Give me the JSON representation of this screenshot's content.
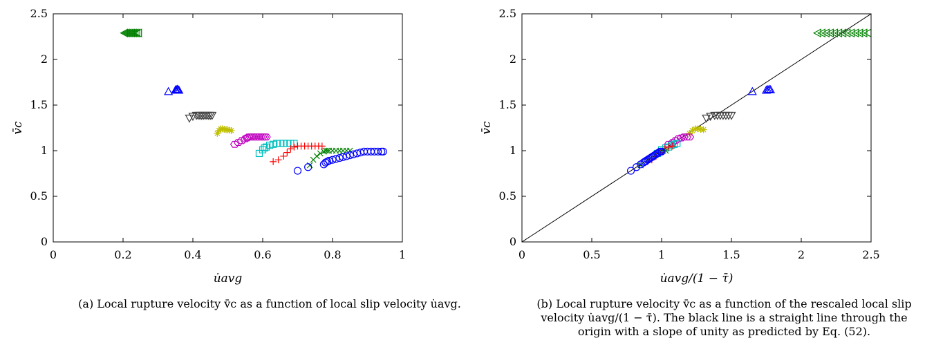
{
  "chart_data": [
    {
      "type": "scatter",
      "xlabel": "u̇avg",
      "ylabel": "v̄c",
      "xlim": [
        0,
        1
      ],
      "ylim": [
        0,
        2.5
      ],
      "xticks": [
        "0",
        "0.2",
        "0.4",
        "0.6",
        "0.8",
        "1"
      ],
      "yticks": [
        "0",
        "0.5",
        "1",
        "1.5",
        "2",
        "2.5"
      ],
      "xtick_values": [
        0,
        0.2,
        0.4,
        0.6,
        0.8,
        1
      ],
      "ytick_values": [
        0,
        0.5,
        1,
        1.5,
        2,
        2.5
      ],
      "caption": "(a) Local rupture velocity v̄c as a function of local slip velocity u̇avg.",
      "series": [
        {
          "color": "#008000",
          "marker": "triangle-left",
          "x": [
            0.205,
            0.21,
            0.215,
            0.22,
            0.225,
            0.23,
            0.235,
            0.24,
            0.245
          ],
          "y": [
            2.29,
            2.29,
            2.29,
            2.29,
            2.29,
            2.29,
            2.29,
            2.29,
            2.29
          ]
        },
        {
          "color": "#0000ff",
          "marker": "triangle-up",
          "x": [
            0.33,
            0.35,
            0.352,
            0.355,
            0.357,
            0.36
          ],
          "y": [
            1.645,
            1.66,
            1.665,
            1.67,
            1.665,
            1.66
          ]
        },
        {
          "color": "#3f3f3f",
          "marker": "triangle-down",
          "x": [
            0.39,
            0.4,
            0.41,
            0.415,
            0.42,
            0.425,
            0.43,
            0.435,
            0.44,
            0.445,
            0.45,
            0.455
          ],
          "y": [
            1.36,
            1.38,
            1.39,
            1.39,
            1.39,
            1.39,
            1.39,
            1.39,
            1.39,
            1.39,
            1.39,
            1.39
          ]
        },
        {
          "color": "#bfbf00",
          "marker": "star",
          "x": [
            0.47,
            0.475,
            0.48,
            0.485,
            0.49,
            0.495,
            0.5,
            0.505,
            0.51
          ],
          "y": [
            1.19,
            1.22,
            1.24,
            1.24,
            1.235,
            1.23,
            1.23,
            1.225,
            1.22
          ]
        },
        {
          "color": "#bf00bf",
          "marker": "hexagon",
          "x": [
            0.52,
            0.53,
            0.54,
            0.55,
            0.555,
            0.56,
            0.565,
            0.57,
            0.575,
            0.58,
            0.585,
            0.59,
            0.595,
            0.6,
            0.605,
            0.61
          ],
          "y": [
            1.07,
            1.09,
            1.11,
            1.13,
            1.14,
            1.15,
            1.15,
            1.15,
            1.15,
            1.15,
            1.15,
            1.15,
            1.15,
            1.15,
            1.15,
            1.15
          ]
        },
        {
          "color": "#00bfbf",
          "marker": "square",
          "x": [
            0.59,
            0.6,
            0.605,
            0.61,
            0.62,
            0.63,
            0.64,
            0.65,
            0.66,
            0.67,
            0.68,
            0.69
          ],
          "y": [
            0.97,
            1.01,
            1.03,
            1.04,
            1.06,
            1.07,
            1.08,
            1.08,
            1.08,
            1.08,
            1.08,
            1.08
          ]
        },
        {
          "color": "#ff0000",
          "marker": "plus",
          "x": [
            0.63,
            0.645,
            0.66,
            0.67,
            0.68,
            0.69,
            0.7,
            0.71,
            0.72,
            0.73,
            0.74,
            0.75,
            0.76,
            0.77
          ],
          "y": [
            0.88,
            0.9,
            0.94,
            0.98,
            1.02,
            1.04,
            1.05,
            1.05,
            1.05,
            1.05,
            1.05,
            1.05,
            1.05,
            1.05
          ]
        },
        {
          "color": "#008000",
          "marker": "x",
          "x": [
            0.735,
            0.745,
            0.755,
            0.765,
            0.775,
            0.78,
            0.785,
            0.79,
            0.8,
            0.81,
            0.82,
            0.83,
            0.84,
            0.85
          ],
          "y": [
            0.84,
            0.9,
            0.94,
            0.97,
            0.99,
            1.0,
            1.0,
            1.0,
            1.0,
            1.0,
            1.0,
            1.0,
            1.0,
            1.0
          ]
        },
        {
          "color": "#0000ff",
          "marker": "circle",
          "x": [
            0.7,
            0.73,
            0.775,
            0.78,
            0.785,
            0.79,
            0.8,
            0.81,
            0.82,
            0.83,
            0.84,
            0.85,
            0.86,
            0.87,
            0.88,
            0.89,
            0.9,
            0.91,
            0.92,
            0.93,
            0.94,
            0.945
          ],
          "y": [
            0.78,
            0.82,
            0.85,
            0.87,
            0.88,
            0.89,
            0.9,
            0.91,
            0.92,
            0.93,
            0.94,
            0.95,
            0.96,
            0.97,
            0.98,
            0.99,
            0.99,
            0.99,
            0.99,
            0.99,
            0.99,
            0.99
          ]
        }
      ]
    },
    {
      "type": "scatter",
      "xlabel": "u̇avg/(1 − τ̄)",
      "ylabel": "v̄c",
      "xlim": [
        0,
        2.5
      ],
      "ylim": [
        0,
        2.5
      ],
      "xticks": [
        "0",
        "0.5",
        "1",
        "1.5",
        "2",
        "2.5"
      ],
      "yticks": [
        "0",
        "0.5",
        "1",
        "1.5",
        "2",
        "2.5"
      ],
      "xtick_values": [
        0,
        0.5,
        1,
        1.5,
        2,
        2.5
      ],
      "ytick_values": [
        0,
        0.5,
        1,
        1.5,
        2,
        2.5
      ],
      "caption": "(b) Local rupture velocity v̄c as a function of the rescaled local slip velocity u̇avg/(1 − τ̄). The black line is a straight line through the origin with a slope of unity as predicted by Eq. (52).",
      "reference_line": {
        "x": [
          0,
          2.5
        ],
        "y": [
          0,
          2.5
        ],
        "color": "#000000"
      },
      "series": [
        {
          "color": "#008000",
          "marker": "triangle-left",
          "x": [
            2.12,
            2.15,
            2.18,
            2.21,
            2.24,
            2.27,
            2.3,
            2.33,
            2.36,
            2.39,
            2.42,
            2.45,
            2.48
          ],
          "y": [
            2.29,
            2.29,
            2.29,
            2.29,
            2.29,
            2.29,
            2.29,
            2.29,
            2.29,
            2.29,
            2.29,
            2.29,
            2.29
          ]
        },
        {
          "color": "#0000ff",
          "marker": "triangle-up",
          "x": [
            1.65,
            1.75,
            1.76,
            1.77,
            1.78
          ],
          "y": [
            1.645,
            1.66,
            1.665,
            1.67,
            1.665
          ]
        },
        {
          "color": "#3f3f3f",
          "marker": "triangle-down",
          "x": [
            1.32,
            1.35,
            1.38,
            1.4,
            1.42,
            1.44,
            1.46,
            1.48,
            1.5
          ],
          "y": [
            1.36,
            1.38,
            1.39,
            1.39,
            1.39,
            1.39,
            1.39,
            1.39,
            1.39
          ]
        },
        {
          "color": "#bfbf00",
          "marker": "star",
          "x": [
            1.2,
            1.22,
            1.24,
            1.26,
            1.28,
            1.3
          ],
          "y": [
            1.19,
            1.22,
            1.24,
            1.24,
            1.235,
            1.23
          ]
        },
        {
          "color": "#bf00bf",
          "marker": "hexagon",
          "x": [
            1.05,
            1.08,
            1.1,
            1.12,
            1.14,
            1.16,
            1.18,
            1.2
          ],
          "y": [
            1.07,
            1.09,
            1.11,
            1.13,
            1.14,
            1.15,
            1.15,
            1.15
          ]
        },
        {
          "color": "#00bfbf",
          "marker": "square",
          "x": [
            0.97,
            1.0,
            1.03,
            1.05,
            1.07,
            1.09,
            1.11
          ],
          "y": [
            0.97,
            1.01,
            1.03,
            1.04,
            1.06,
            1.07,
            1.08
          ]
        },
        {
          "color": "#ff0000",
          "marker": "plus",
          "x": [
            0.9,
            0.93,
            0.96,
            0.99,
            1.02,
            1.05,
            1.08
          ],
          "y": [
            0.88,
            0.9,
            0.94,
            0.98,
            1.02,
            1.04,
            1.05
          ]
        },
        {
          "color": "#008000",
          "marker": "x",
          "x": [
            0.85,
            0.9,
            0.94,
            0.97,
            0.99,
            1.01,
            1.03
          ],
          "y": [
            0.84,
            0.9,
            0.94,
            0.97,
            0.99,
            1.0,
            1.0
          ]
        },
        {
          "color": "#0000ff",
          "marker": "circle",
          "x": [
            0.78,
            0.82,
            0.85,
            0.87,
            0.88,
            0.89,
            0.9,
            0.91,
            0.92,
            0.93,
            0.94,
            0.95,
            0.96,
            0.97,
            0.98,
            0.99,
            1.0
          ],
          "y": [
            0.78,
            0.82,
            0.85,
            0.87,
            0.88,
            0.89,
            0.9,
            0.91,
            0.92,
            0.93,
            0.94,
            0.95,
            0.96,
            0.97,
            0.98,
            0.99,
            0.99
          ]
        }
      ]
    }
  ]
}
